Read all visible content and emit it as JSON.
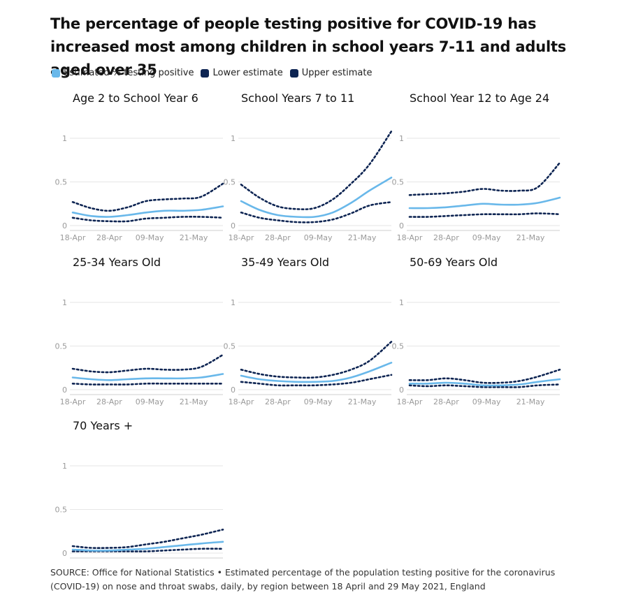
{
  "title": "The percentage of people testing positive for COVID-19 has increased most among children in school years 7-11 and adults aged over 35",
  "legend": [
    {
      "label": "Estimated % testing positive",
      "color": "#69b8ea"
    },
    {
      "label": "Lower estimate",
      "color": "#0d2452"
    },
    {
      "label": "Upper estimate",
      "color": "#0d2452"
    }
  ],
  "source": "SOURCE: Office for National Statistics • Estimated percentage of the population testing positive for the coronavirus (COVID-19) on nose and throat swabs, daily, by region between 18 April and 29 May 2021, England",
  "chart_data": {
    "type": "line",
    "x_ticks": [
      "18-Apr",
      "28-Apr",
      "09-May",
      "21-May"
    ],
    "x_tick_days": [
      0,
      10,
      21,
      33
    ],
    "x_range": [
      "18-Apr",
      "29-May"
    ],
    "y_ticks": [
      "0",
      "0.5",
      "1"
    ],
    "ylim": [
      0,
      1.2
    ],
    "grid": true,
    "colors": {
      "estimate": "#69b8ea",
      "bounds": "#0d2452"
    },
    "panels": [
      {
        "title": "Age 2 to School Year 6",
        "x": [
          0,
          5,
          10,
          15,
          20,
          25,
          30,
          35,
          41
        ],
        "estimate": [
          0.15,
          0.11,
          0.1,
          0.12,
          0.15,
          0.17,
          0.17,
          0.18,
          0.22
        ],
        "lower": [
          0.09,
          0.06,
          0.05,
          0.05,
          0.08,
          0.09,
          0.1,
          0.1,
          0.09
        ],
        "upper": [
          0.27,
          0.2,
          0.17,
          0.21,
          0.28,
          0.3,
          0.31,
          0.33,
          0.48
        ]
      },
      {
        "title": "School Years 7 to 11",
        "x": [
          0,
          5,
          10,
          15,
          20,
          25,
          30,
          35,
          41
        ],
        "estimate": [
          0.28,
          0.18,
          0.12,
          0.1,
          0.1,
          0.15,
          0.26,
          0.4,
          0.55
        ],
        "lower": [
          0.15,
          0.09,
          0.06,
          0.04,
          0.04,
          0.07,
          0.14,
          0.23,
          0.27
        ],
        "upper": [
          0.47,
          0.32,
          0.22,
          0.19,
          0.2,
          0.3,
          0.48,
          0.7,
          1.08
        ]
      },
      {
        "title": "School Year 12 to Age 24",
        "x": [
          0,
          5,
          10,
          15,
          20,
          25,
          30,
          35,
          41
        ],
        "estimate": [
          0.2,
          0.2,
          0.21,
          0.23,
          0.25,
          0.24,
          0.24,
          0.26,
          0.32
        ],
        "lower": [
          0.1,
          0.1,
          0.11,
          0.12,
          0.13,
          0.13,
          0.13,
          0.14,
          0.13
        ],
        "upper": [
          0.35,
          0.36,
          0.37,
          0.39,
          0.42,
          0.4,
          0.4,
          0.44,
          0.72
        ]
      },
      {
        "title": "25-34 Years Old",
        "x": [
          0,
          5,
          10,
          15,
          20,
          25,
          30,
          35,
          41
        ],
        "estimate": [
          0.14,
          0.12,
          0.11,
          0.12,
          0.13,
          0.13,
          0.13,
          0.14,
          0.18
        ],
        "lower": [
          0.07,
          0.06,
          0.06,
          0.06,
          0.07,
          0.07,
          0.07,
          0.07,
          0.07
        ],
        "upper": [
          0.24,
          0.21,
          0.2,
          0.22,
          0.24,
          0.23,
          0.23,
          0.26,
          0.4
        ]
      },
      {
        "title": "35-49 Years Old",
        "x": [
          0,
          5,
          10,
          15,
          20,
          25,
          30,
          35,
          41
        ],
        "estimate": [
          0.16,
          0.12,
          0.1,
          0.09,
          0.09,
          0.1,
          0.14,
          0.21,
          0.31
        ],
        "lower": [
          0.09,
          0.07,
          0.05,
          0.05,
          0.05,
          0.06,
          0.08,
          0.12,
          0.17
        ],
        "upper": [
          0.23,
          0.18,
          0.15,
          0.14,
          0.14,
          0.17,
          0.23,
          0.33,
          0.55
        ]
      },
      {
        "title": "50-69 Years Old",
        "x": [
          0,
          5,
          10,
          15,
          20,
          25,
          30,
          35,
          41
        ],
        "estimate": [
          0.07,
          0.07,
          0.08,
          0.07,
          0.05,
          0.05,
          0.06,
          0.09,
          0.12
        ],
        "lower": [
          0.05,
          0.04,
          0.05,
          0.04,
          0.03,
          0.03,
          0.03,
          0.05,
          0.06
        ],
        "upper": [
          0.11,
          0.11,
          0.13,
          0.11,
          0.08,
          0.08,
          0.1,
          0.15,
          0.23
        ]
      },
      {
        "title": "70 Years +",
        "x": [
          0,
          5,
          10,
          15,
          20,
          25,
          30,
          35,
          41
        ],
        "estimate": [
          0.04,
          0.03,
          0.03,
          0.04,
          0.05,
          0.07,
          0.09,
          0.11,
          0.13
        ],
        "lower": [
          0.02,
          0.02,
          0.02,
          0.02,
          0.02,
          0.03,
          0.04,
          0.05,
          0.05
        ],
        "upper": [
          0.08,
          0.06,
          0.06,
          0.07,
          0.1,
          0.13,
          0.17,
          0.21,
          0.27
        ]
      }
    ]
  }
}
